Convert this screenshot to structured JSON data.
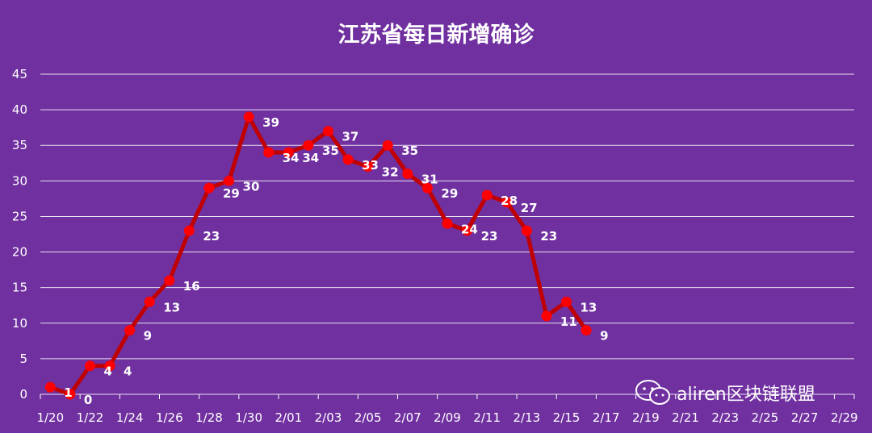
{
  "chart_data": {
    "type": "line",
    "title": "江苏省每日新增确诊",
    "xlabel": "",
    "ylabel": "",
    "ylim": [
      0,
      45
    ],
    "y_ticks": [
      0,
      5,
      10,
      15,
      20,
      25,
      30,
      35,
      40,
      45
    ],
    "x_tick_labels": [
      "1/20",
      "1/22",
      "1/24",
      "1/26",
      "1/28",
      "1/30",
      "2/01",
      "2/03",
      "2/05",
      "2/07",
      "2/09",
      "2/11",
      "2/13",
      "2/15",
      "2/17",
      "2/19",
      "2/21",
      "2/23",
      "2/25",
      "2/27",
      "2/29"
    ],
    "x": [
      "1/20",
      "1/21",
      "1/22",
      "1/23",
      "1/24",
      "1/25",
      "1/26",
      "1/27",
      "1/28",
      "1/29",
      "1/30",
      "1/31",
      "2/01",
      "2/02",
      "2/03",
      "2/04",
      "2/05",
      "2/06",
      "2/07",
      "2/08",
      "2/09",
      "2/10",
      "2/11",
      "2/12",
      "2/13",
      "2/14",
      "2/15",
      "2/16"
    ],
    "series": [
      {
        "values": [
          1,
          0,
          4,
          4,
          9,
          13,
          16,
          23,
          29,
          30,
          39,
          34,
          34,
          35,
          37,
          33,
          32,
          35,
          31,
          29,
          24,
          23,
          28,
          27,
          23,
          11,
          13,
          9
        ]
      }
    ],
    "grid": true,
    "colors": {
      "line": "#c00000",
      "marker": "#ff0000",
      "background": "#7030a0",
      "text": "#ffffff"
    }
  },
  "watermark": {
    "text": "aliren区块链联盟",
    "icon": "wechat-icon"
  }
}
